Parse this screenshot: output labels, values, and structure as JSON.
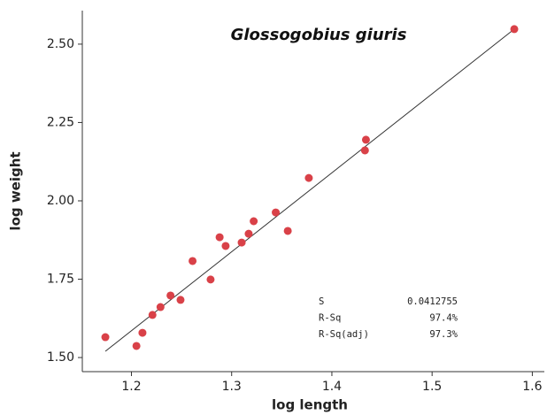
{
  "chart_data": {
    "type": "scatter",
    "title": "Glossogobius giuris",
    "x_label": "log length",
    "y_label": "log weight",
    "color": "#d94148",
    "line_color": "#333333",
    "x": [
      1.174,
      1.205,
      1.211,
      1.221,
      1.229,
      1.239,
      1.249,
      1.261,
      1.279,
      1.288,
      1.294,
      1.31,
      1.317,
      1.322,
      1.344,
      1.356,
      1.377,
      1.433,
      1.434,
      1.582
    ],
    "values": [
      1.565,
      1.537,
      1.579,
      1.636,
      1.661,
      1.698,
      1.684,
      1.808,
      1.749,
      1.884,
      1.856,
      1.867,
      1.895,
      1.935,
      1.963,
      1.904,
      2.073,
      2.161,
      2.195,
      2.548
    ],
    "fit_line": {
      "x": [
        1.174,
        1.582
      ],
      "y": [
        1.52,
        2.548
      ]
    },
    "xlim": [
      1.151,
      1.612
    ],
    "ylim": [
      1.455,
      2.607
    ],
    "xticks": [
      1.2,
      1.3,
      1.4,
      1.5,
      1.6
    ],
    "yticks": [
      {
        "value": 1.5,
        "label": "1.50"
      },
      1.75,
      {
        "value": 2.0,
        "label": "2.00"
      },
      2.25,
      {
        "value": 2.5,
        "label": "2.50"
      }
    ],
    "grid": false,
    "stats": [
      [
        "S",
        "0.0412755"
      ],
      [
        "R-Sq",
        "97.4%"
      ],
      [
        "R-Sq(adj)",
        "97.3%"
      ]
    ]
  }
}
